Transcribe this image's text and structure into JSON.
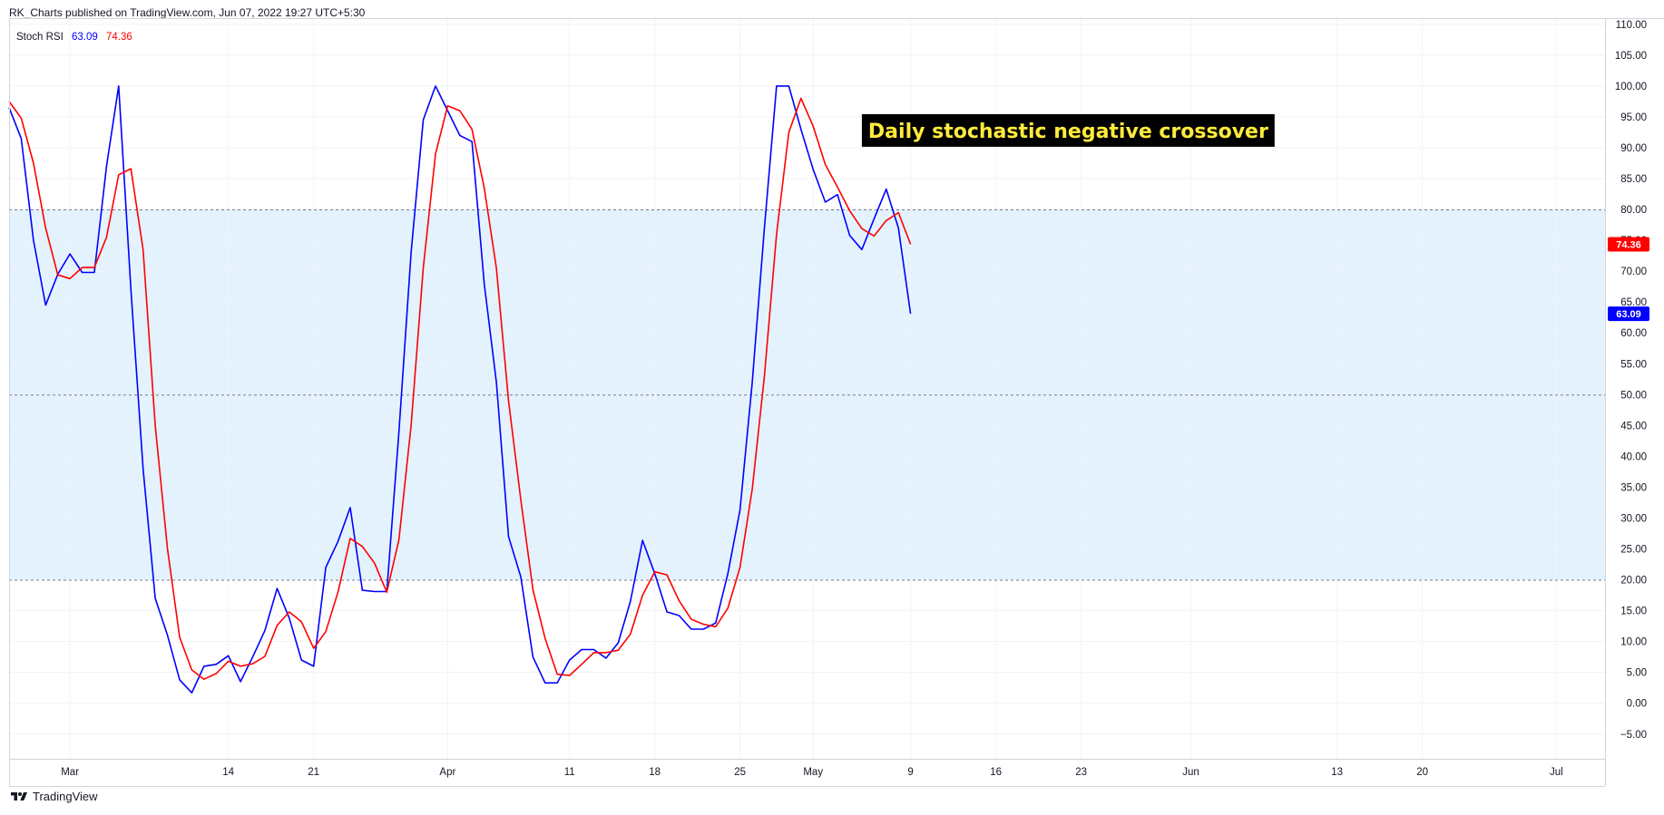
{
  "header": {
    "title": "RK_Charts published on TradingView.com, Jun 07, 2022 19:27 UTC+5:30"
  },
  "indicator": {
    "name": "Stoch RSI",
    "k_value": "63.09",
    "d_value": "74.36"
  },
  "footer": {
    "brand": "TradingView"
  },
  "colors": {
    "k": "#0000ff",
    "d": "#ff0000",
    "band_fill": "#e3f2fd",
    "grid": "#f0f3fa",
    "annotation_bg": "#000000",
    "annotation_text": "#ffeb3b"
  },
  "chart_data": {
    "type": "line",
    "ylim": [
      -9,
      111
    ],
    "y_ticks": [
      110,
      105,
      100,
      95,
      90,
      85,
      80,
      75,
      70,
      65,
      60,
      55,
      50,
      45,
      40,
      35,
      30,
      25,
      20,
      15,
      10,
      5,
      0,
      -5
    ],
    "y_tick_labels": [
      "110.00",
      "105.00",
      "100.00",
      "95.00",
      "90.00",
      "85.00",
      "80.00",
      "75.00",
      "70.00",
      "65.00",
      "60.00",
      "55.00",
      "50.00",
      "45.00",
      "40.00",
      "35.00",
      "30.00",
      "25.00",
      "20.00",
      "15.00",
      "10.00",
      "5.00",
      "0.00",
      "−5.00"
    ],
    "bands": {
      "upper": 80,
      "middle": 50,
      "lower": 20
    },
    "x_range": [
      "2022-02-24",
      "2022-07-05"
    ],
    "x_ticks": [
      {
        "date": "2022-03-01",
        "label": "Mar"
      },
      {
        "date": "2022-03-14",
        "label": "14"
      },
      {
        "date": "2022-03-21",
        "label": "21"
      },
      {
        "date": "2022-04-01",
        "label": "Apr"
      },
      {
        "date": "2022-04-11",
        "label": "11"
      },
      {
        "date": "2022-04-18",
        "label": "18"
      },
      {
        "date": "2022-04-25",
        "label": "25"
      },
      {
        "date": "2022-05-01",
        "label": "May"
      },
      {
        "date": "2022-05-09",
        "label": "9"
      },
      {
        "date": "2022-05-16",
        "label": "16"
      },
      {
        "date": "2022-05-23",
        "label": "23"
      },
      {
        "date": "2022-06-01",
        "label": "Jun"
      },
      {
        "date": "2022-06-13",
        "label": "13"
      },
      {
        "date": "2022-06-20",
        "label": "20"
      },
      {
        "date": "2022-07-01",
        "label": "Jul"
      }
    ],
    "series": [
      {
        "color": "#0000ff",
        "points": [
          [
            "2022-02-24",
            96.5
          ],
          [
            "2022-02-25",
            91.5
          ],
          [
            "2022-02-26",
            75
          ],
          [
            "2022-02-27",
            64.5
          ],
          [
            "2022-02-28",
            69.5
          ],
          [
            "2022-03-01",
            72.8
          ],
          [
            "2022-03-02",
            69.8
          ],
          [
            "2022-03-03",
            69.8
          ],
          [
            "2022-03-04",
            87
          ],
          [
            "2022-03-05",
            100
          ],
          [
            "2022-03-06",
            67
          ],
          [
            "2022-03-07",
            38
          ],
          [
            "2022-03-08",
            17
          ],
          [
            "2022-03-09",
            11
          ],
          [
            "2022-03-10",
            3.8
          ],
          [
            "2022-03-11",
            1.7
          ],
          [
            "2022-03-12",
            6
          ],
          [
            "2022-03-13",
            6.3
          ],
          [
            "2022-03-14",
            7.7
          ],
          [
            "2022-03-15",
            3.5
          ],
          [
            "2022-03-16",
            7.5
          ],
          [
            "2022-03-17",
            11.8
          ],
          [
            "2022-03-18",
            18.6
          ],
          [
            "2022-03-19",
            13.8
          ],
          [
            "2022-03-20",
            7
          ],
          [
            "2022-03-21",
            6
          ],
          [
            "2022-03-22",
            22
          ],
          [
            "2022-03-23",
            26.2
          ],
          [
            "2022-03-24",
            31.7
          ],
          [
            "2022-03-25",
            18.3
          ],
          [
            "2022-03-26",
            18.1
          ],
          [
            "2022-03-27",
            18.1
          ],
          [
            "2022-03-28",
            44
          ],
          [
            "2022-03-29",
            73
          ],
          [
            "2022-03-30",
            94.5
          ],
          [
            "2022-03-31",
            100
          ],
          [
            "2022-04-01",
            96
          ],
          [
            "2022-04-02",
            92
          ],
          [
            "2022-04-03",
            91
          ],
          [
            "2022-04-04",
            68
          ],
          [
            "2022-04-05",
            52
          ],
          [
            "2022-04-06",
            27
          ],
          [
            "2022-04-07",
            20.5
          ],
          [
            "2022-04-08",
            7.5
          ],
          [
            "2022-04-09",
            3.3
          ],
          [
            "2022-04-10",
            3.3
          ],
          [
            "2022-04-11",
            7
          ],
          [
            "2022-04-12",
            8.7
          ],
          [
            "2022-04-13",
            8.7
          ],
          [
            "2022-04-14",
            7.3
          ],
          [
            "2022-04-15",
            9.8
          ],
          [
            "2022-04-16",
            16.5
          ],
          [
            "2022-04-17",
            26.4
          ],
          [
            "2022-04-18",
            21
          ],
          [
            "2022-04-19",
            14.8
          ],
          [
            "2022-04-20",
            14.2
          ],
          [
            "2022-04-21",
            12
          ],
          [
            "2022-04-22",
            12
          ],
          [
            "2022-04-23",
            13
          ],
          [
            "2022-04-24",
            21
          ],
          [
            "2022-04-25",
            31.3
          ],
          [
            "2022-04-26",
            52
          ],
          [
            "2022-04-27",
            77
          ],
          [
            "2022-04-28",
            100
          ],
          [
            "2022-04-29",
            100
          ],
          [
            "2022-04-30",
            93
          ],
          [
            "2022-05-01",
            86.5
          ],
          [
            "2022-05-02",
            81.2
          ],
          [
            "2022-05-03",
            82.4
          ],
          [
            "2022-05-04",
            75.8
          ],
          [
            "2022-05-05",
            73.5
          ],
          [
            "2022-05-06",
            78.5
          ],
          [
            "2022-05-07",
            83.3
          ],
          [
            "2022-05-08",
            77
          ],
          [
            "2022-05-09",
            63.1
          ]
        ]
      },
      {
        "color": "#ff0000",
        "points": [
          [
            "2022-02-24",
            97.5
          ],
          [
            "2022-02-25",
            94.8
          ],
          [
            "2022-02-26",
            87.5
          ],
          [
            "2022-02-27",
            77
          ],
          [
            "2022-02-28",
            69.4
          ],
          [
            "2022-03-01",
            68.8
          ],
          [
            "2022-03-02",
            70.6
          ],
          [
            "2022-03-03",
            70.6
          ],
          [
            "2022-03-04",
            75.5
          ],
          [
            "2022-03-05",
            85.6
          ],
          [
            "2022-03-06",
            86.6
          ],
          [
            "2022-03-07",
            73.5
          ],
          [
            "2022-03-08",
            45
          ],
          [
            "2022-03-09",
            25
          ],
          [
            "2022-03-10",
            10.7
          ],
          [
            "2022-03-11",
            5.4
          ],
          [
            "2022-03-12",
            3.9
          ],
          [
            "2022-03-13",
            4.8
          ],
          [
            "2022-03-14",
            6.8
          ],
          [
            "2022-03-15",
            6
          ],
          [
            "2022-03-16",
            6.4
          ],
          [
            "2022-03-17",
            7.6
          ],
          [
            "2022-03-18",
            12.6
          ],
          [
            "2022-03-19",
            14.8
          ],
          [
            "2022-03-20",
            13.2
          ],
          [
            "2022-03-21",
            8.9
          ],
          [
            "2022-03-22",
            11.6
          ],
          [
            "2022-03-23",
            18
          ],
          [
            "2022-03-24",
            26.7
          ],
          [
            "2022-03-25",
            25.4
          ],
          [
            "2022-03-26",
            22.7
          ],
          [
            "2022-03-27",
            18
          ],
          [
            "2022-03-28",
            26.5
          ],
          [
            "2022-03-29",
            45
          ],
          [
            "2022-03-30",
            70.5
          ],
          [
            "2022-03-31",
            89
          ],
          [
            "2022-04-01",
            96.8
          ],
          [
            "2022-04-02",
            96
          ],
          [
            "2022-04-03",
            93
          ],
          [
            "2022-04-04",
            83.5
          ],
          [
            "2022-04-05",
            70.5
          ],
          [
            "2022-04-06",
            49
          ],
          [
            "2022-04-07",
            33
          ],
          [
            "2022-04-08",
            18.4
          ],
          [
            "2022-04-09",
            10.5
          ],
          [
            "2022-04-10",
            4.7
          ],
          [
            "2022-04-11",
            4.5
          ],
          [
            "2022-04-12",
            6.3
          ],
          [
            "2022-04-13",
            8.2
          ],
          [
            "2022-04-14",
            8.2
          ],
          [
            "2022-04-15",
            8.6
          ],
          [
            "2022-04-16",
            11.2
          ],
          [
            "2022-04-17",
            17.5
          ],
          [
            "2022-04-18",
            21.3
          ],
          [
            "2022-04-19",
            20.8
          ],
          [
            "2022-04-20",
            16.6
          ],
          [
            "2022-04-21",
            13.6
          ],
          [
            "2022-04-22",
            12.8
          ],
          [
            "2022-04-23",
            12.4
          ],
          [
            "2022-04-24",
            15.4
          ],
          [
            "2022-04-25",
            22
          ],
          [
            "2022-04-26",
            34.7
          ],
          [
            "2022-04-27",
            53
          ],
          [
            "2022-04-28",
            76
          ],
          [
            "2022-04-29",
            92.5
          ],
          [
            "2022-04-30",
            98
          ],
          [
            "2022-05-01",
            93.5
          ],
          [
            "2022-05-02",
            87.3
          ],
          [
            "2022-05-03",
            83.6
          ],
          [
            "2022-05-04",
            79.8
          ],
          [
            "2022-05-05",
            76.9
          ],
          [
            "2022-05-06",
            75.7
          ],
          [
            "2022-05-07",
            78.2
          ],
          [
            "2022-05-08",
            79.5
          ],
          [
            "2022-05-09",
            74.36
          ]
        ]
      }
    ],
    "last_value_labels": [
      {
        "value": 74.36,
        "text": "74.36",
        "color": "#ff0000"
      },
      {
        "value": 63.09,
        "text": "63.09",
        "color": "#0000ff"
      }
    ],
    "annotation": {
      "text": "Daily stochastic negative crossover",
      "anchor": {
        "date": "2022-05-05",
        "y": 92.8
      }
    },
    "grid": true
  }
}
